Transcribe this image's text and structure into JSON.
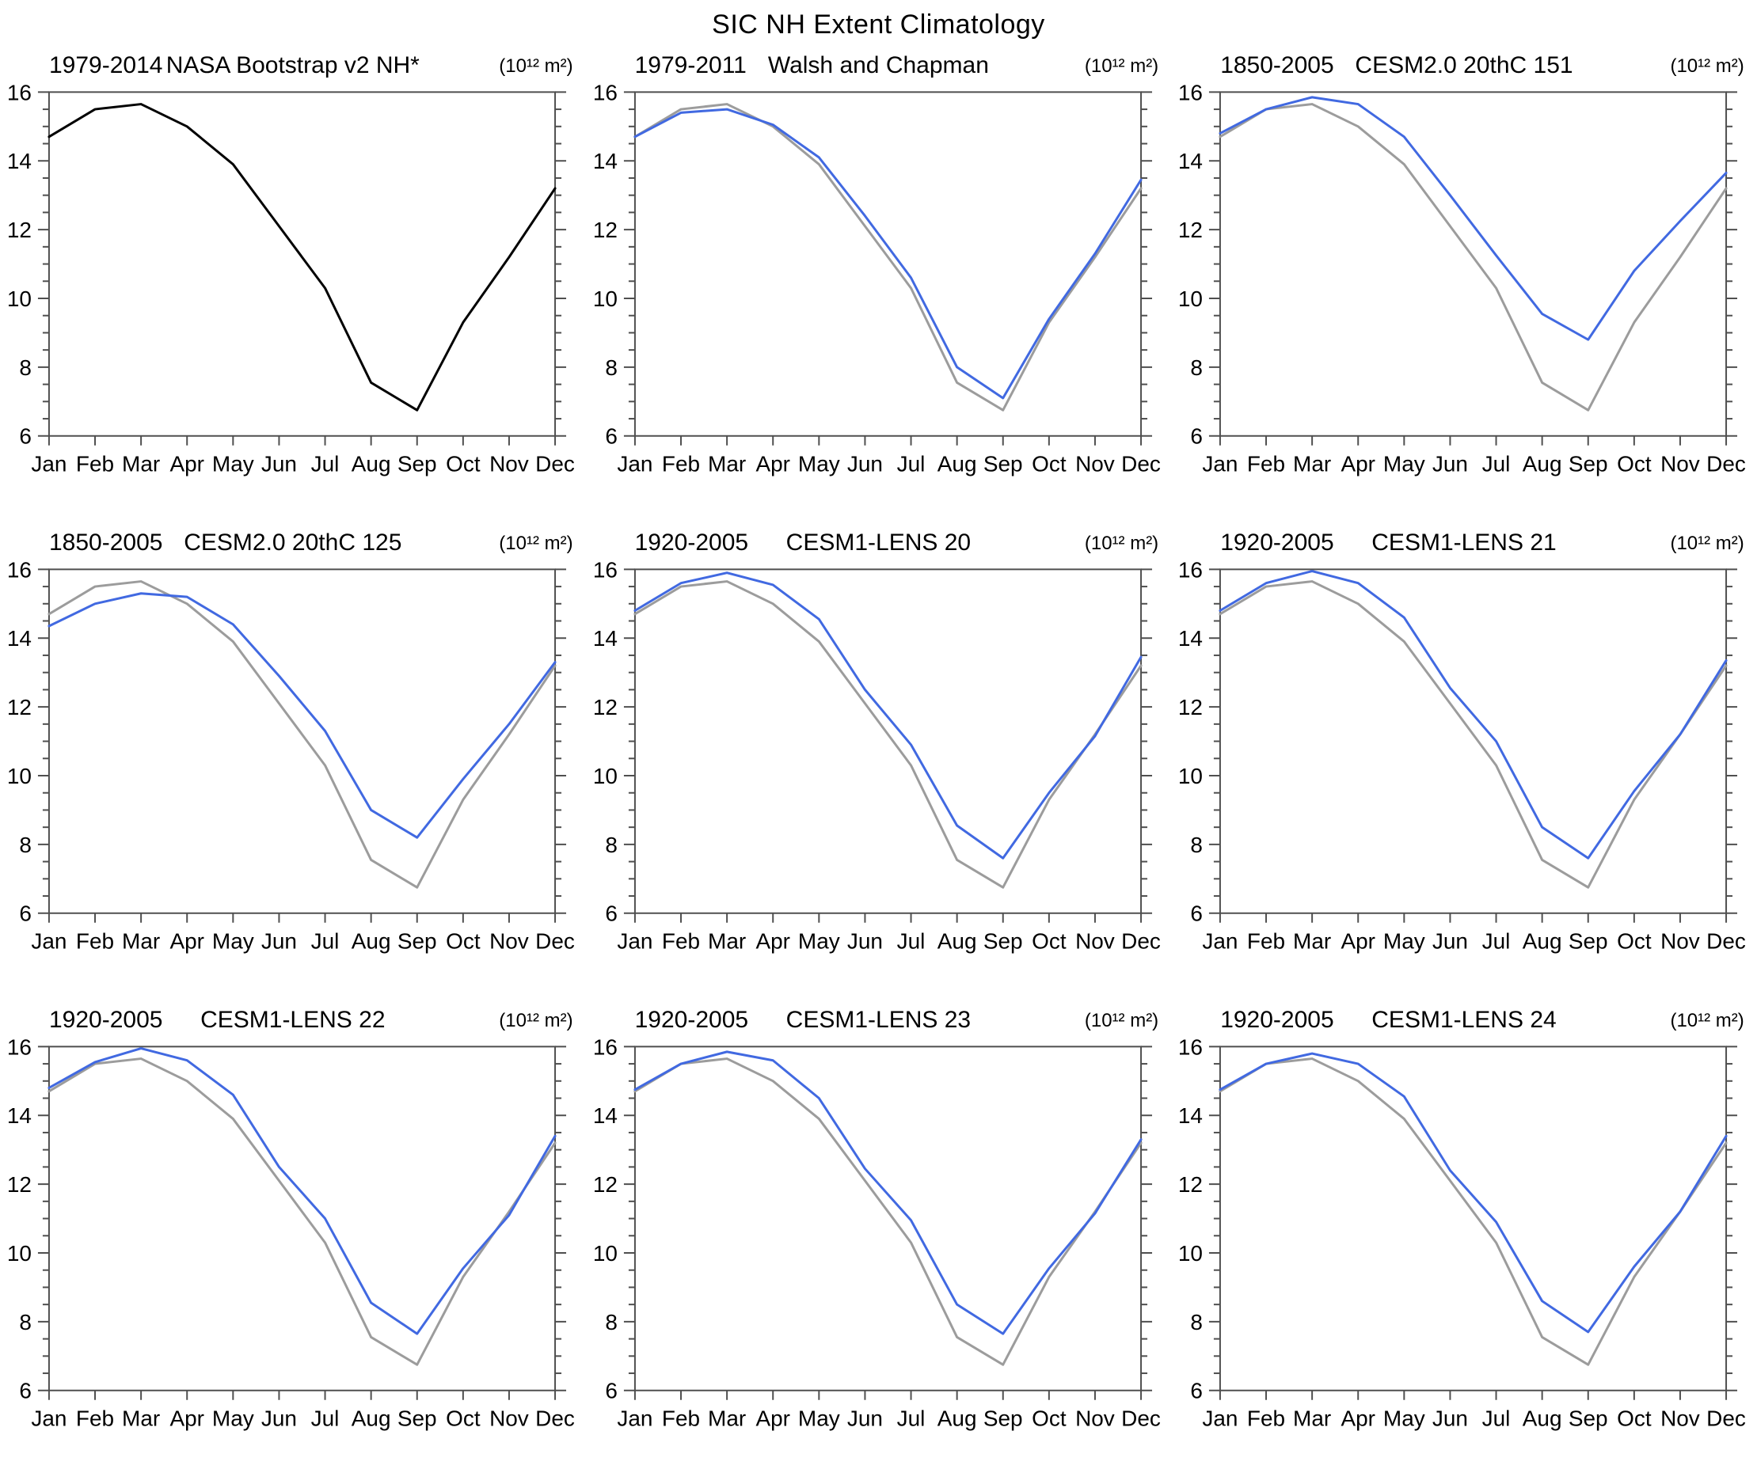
{
  "title": "SIC NH Extent Climatology",
  "chart_data": {
    "type": "line",
    "categories": [
      "Jan",
      "Feb",
      "Mar",
      "Apr",
      "May",
      "Jun",
      "Jul",
      "Aug",
      "Sep",
      "Oct",
      "Nov",
      "Dec"
    ],
    "ylim": [
      6,
      16
    ],
    "y_major_ticks": [
      6,
      8,
      10,
      12,
      14,
      16
    ],
    "y_minor_step": 0.5,
    "grid": false,
    "legend": "none",
    "units_label": "(10¹² m²)",
    "colors": {
      "observation_black": "#000000",
      "observation_gray": "#9c9c9c",
      "model_blue": "#4169e1",
      "axis": "#4f4f4f"
    },
    "panels": [
      {
        "id": "nasa-bootstrap-v2-nh",
        "period": "1979-2014",
        "name": "NASA Bootstrap v2 NH*",
        "units": "(10¹² m²)",
        "series": [
          {
            "name": "NASA Bootstrap v2 NH",
            "color": "#000000",
            "values": [
              14.7,
              15.5,
              15.65,
              15.0,
              13.9,
              12.1,
              10.3,
              7.55,
              6.75,
              9.3,
              11.2,
              13.2
            ]
          }
        ]
      },
      {
        "id": "walsh-and-chapman",
        "period": "1979-2011",
        "name": "Walsh and Chapman",
        "units": "(10¹² m²)",
        "series": [
          {
            "name": "NASA Bootstrap v2 NH reference",
            "color": "#9c9c9c",
            "values": [
              14.7,
              15.5,
              15.65,
              15.0,
              13.9,
              12.1,
              10.3,
              7.55,
              6.75,
              9.3,
              11.2,
              13.2
            ]
          },
          {
            "name": "Walsh and Chapman",
            "color": "#4169e1",
            "values": [
              14.7,
              15.4,
              15.5,
              15.05,
              14.1,
              12.4,
              10.6,
              8.0,
              7.1,
              9.4,
              11.3,
              13.45
            ]
          }
        ]
      },
      {
        "id": "cesm2-20thc-151",
        "period": "1850-2005",
        "name": "CESM2.0 20thC 151",
        "units": "(10¹² m²)",
        "series": [
          {
            "name": "NASA Bootstrap v2 NH reference",
            "color": "#9c9c9c",
            "values": [
              14.7,
              15.5,
              15.65,
              15.0,
              13.9,
              12.1,
              10.3,
              7.55,
              6.75,
              9.3,
              11.2,
              13.2
            ]
          },
          {
            "name": "CESM2.0 20thC 151",
            "color": "#4169e1",
            "values": [
              14.8,
              15.5,
              15.85,
              15.65,
              14.7,
              13.0,
              11.25,
              9.55,
              8.8,
              10.8,
              12.25,
              13.65
            ]
          }
        ]
      },
      {
        "id": "cesm2-20thc-125",
        "period": "1850-2005",
        "name": "CESM2.0 20thC 125",
        "units": "(10¹² m²)",
        "series": [
          {
            "name": "NASA Bootstrap v2 NH reference",
            "color": "#9c9c9c",
            "values": [
              14.7,
              15.5,
              15.65,
              15.0,
              13.9,
              12.1,
              10.3,
              7.55,
              6.75,
              9.3,
              11.2,
              13.2
            ]
          },
          {
            "name": "CESM2.0 20thC 125",
            "color": "#4169e1",
            "values": [
              14.35,
              15.0,
              15.3,
              15.2,
              14.4,
              12.9,
              11.3,
              9.0,
              8.2,
              9.9,
              11.5,
              13.3
            ]
          }
        ]
      },
      {
        "id": "cesm1-lens-20",
        "period": "1920-2005",
        "name": "CESM1-LENS 20",
        "units": "(10¹² m²)",
        "series": [
          {
            "name": "NASA Bootstrap v2 NH reference",
            "color": "#9c9c9c",
            "values": [
              14.7,
              15.5,
              15.65,
              15.0,
              13.9,
              12.1,
              10.3,
              7.55,
              6.75,
              9.3,
              11.2,
              13.2
            ]
          },
          {
            "name": "CESM1-LENS 20",
            "color": "#4169e1",
            "values": [
              14.8,
              15.6,
              15.9,
              15.55,
              14.55,
              12.5,
              10.9,
              8.55,
              7.6,
              9.5,
              11.15,
              13.45
            ]
          }
        ]
      },
      {
        "id": "cesm1-lens-21",
        "period": "1920-2005",
        "name": "CESM1-LENS 21",
        "units": "(10¹² m²)",
        "series": [
          {
            "name": "NASA Bootstrap v2 NH reference",
            "color": "#9c9c9c",
            "values": [
              14.7,
              15.5,
              15.65,
              15.0,
              13.9,
              12.1,
              10.3,
              7.55,
              6.75,
              9.3,
              11.2,
              13.2
            ]
          },
          {
            "name": "CESM1-LENS 21",
            "color": "#4169e1",
            "values": [
              14.8,
              15.6,
              15.95,
              15.6,
              14.6,
              12.55,
              11.0,
              8.5,
              7.6,
              9.55,
              11.2,
              13.35
            ]
          }
        ]
      },
      {
        "id": "cesm1-lens-22",
        "period": "1920-2005",
        "name": "CESM1-LENS 22",
        "units": "(10¹² m²)",
        "series": [
          {
            "name": "NASA Bootstrap v2 NH reference",
            "color": "#9c9c9c",
            "values": [
              14.7,
              15.5,
              15.65,
              15.0,
              13.9,
              12.1,
              10.3,
              7.55,
              6.75,
              9.3,
              11.2,
              13.2
            ]
          },
          {
            "name": "CESM1-LENS 22",
            "color": "#4169e1",
            "values": [
              14.8,
              15.55,
              15.95,
              15.6,
              14.6,
              12.5,
              11.0,
              8.55,
              7.65,
              9.55,
              11.1,
              13.4
            ]
          }
        ]
      },
      {
        "id": "cesm1-lens-23",
        "period": "1920-2005",
        "name": "CESM1-LENS 23",
        "units": "(10¹² m²)",
        "series": [
          {
            "name": "NASA Bootstrap v2 NH reference",
            "color": "#9c9c9c",
            "values": [
              14.7,
              15.5,
              15.65,
              15.0,
              13.9,
              12.1,
              10.3,
              7.55,
              6.75,
              9.3,
              11.2,
              13.2
            ]
          },
          {
            "name": "CESM1-LENS 23",
            "color": "#4169e1",
            "values": [
              14.75,
              15.5,
              15.85,
              15.6,
              14.5,
              12.45,
              10.95,
              8.5,
              7.65,
              9.55,
              11.15,
              13.3
            ]
          }
        ]
      },
      {
        "id": "cesm1-lens-24",
        "period": "1920-2005",
        "name": "CESM1-LENS 24",
        "units": "(10¹² m²)",
        "series": [
          {
            "name": "NASA Bootstrap v2 NH reference",
            "color": "#9c9c9c",
            "values": [
              14.7,
              15.5,
              15.65,
              15.0,
              13.9,
              12.1,
              10.3,
              7.55,
              6.75,
              9.3,
              11.2,
              13.2
            ]
          },
          {
            "name": "CESM1-LENS 24",
            "color": "#4169e1",
            "values": [
              14.75,
              15.5,
              15.8,
              15.5,
              14.55,
              12.4,
              10.9,
              8.6,
              7.7,
              9.6,
              11.2,
              13.4
            ]
          }
        ]
      }
    ]
  }
}
